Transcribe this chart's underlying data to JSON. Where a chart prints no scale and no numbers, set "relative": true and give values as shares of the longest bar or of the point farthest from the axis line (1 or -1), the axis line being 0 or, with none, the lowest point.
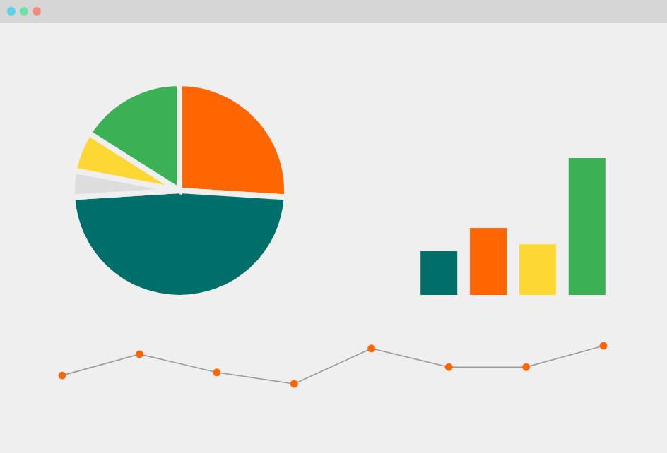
{
  "chart_data": [
    {
      "type": "pie",
      "categories": [
        null,
        null,
        null,
        null,
        null
      ],
      "values": [
        26,
        48,
        4,
        6,
        16
      ],
      "colors": [
        "#ff6600",
        "#006f69",
        "#dddddd",
        "#fdd835",
        "#3cb054"
      ]
    },
    {
      "type": "bar",
      "relative": true,
      "categories": [
        null,
        null,
        null,
        null
      ],
      "values": [
        0.32,
        0.49,
        0.37,
        1
      ],
      "colors": [
        "#006f69",
        "#ff6600",
        "#fdd835",
        "#3cb054"
      ]
    },
    {
      "type": "line",
      "relative": true,
      "marker": "circle",
      "categories": [
        null,
        null,
        null,
        null,
        null,
        null,
        null,
        null
      ],
      "series": [
        {
          "color": "#9a9a9a",
          "values": [
            0.22,
            0.78,
            0.3,
            0,
            0.93,
            0.44,
            0.44,
            1
          ]
        }
      ]
    }
  ]
}
